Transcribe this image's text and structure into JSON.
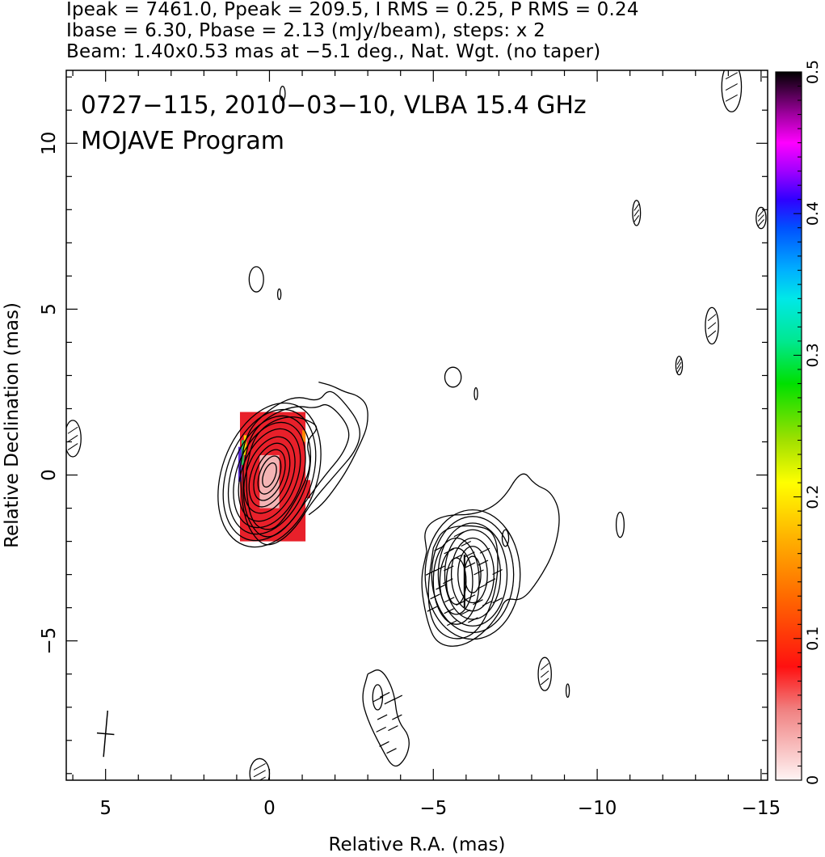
{
  "header": {
    "line1": "Ipeak = 7461.0, Ppeak = 209.5, I RMS = 0.25, P RMS = 0.24",
    "line2": "Ibase = 6.30, Pbase = 2.13 (mJy/beam), steps: x 2",
    "line3": "Beam: 1.40x0.53 mas at −5.1 deg., Nat. Wgt. (no taper)"
  },
  "annotations": {
    "source": "0727−115, 2010−03−10, VLBA 15.4 GHz",
    "program": "MOJAVE Program"
  },
  "chart_data": {
    "type": "contour",
    "xlabel": "Relative R.A. (mas)",
    "ylabel": "Relative Declination (mas)",
    "xlim": [
      6.2,
      -15.2
    ],
    "ylim": [
      -9.2,
      12.2
    ],
    "xticks": [
      {
        "value": 5,
        "label": "5"
      },
      {
        "value": 0,
        "label": "0"
      },
      {
        "value": -5,
        "label": "−5"
      },
      {
        "value": -10,
        "label": "−10"
      },
      {
        "value": -15,
        "label": "−15"
      }
    ],
    "yticks": [
      {
        "value": 10,
        "label": "10"
      },
      {
        "value": 5,
        "label": "5"
      },
      {
        "value": 0,
        "label": "0"
      },
      {
        "value": -5,
        "label": "−5"
      }
    ],
    "beam": {
      "major": 1.4,
      "minor": 0.53,
      "pa_deg": -5.1,
      "center": [
        5.0,
        -7.8
      ]
    },
    "colorbar": {
      "range": [
        0,
        0.5
      ],
      "ticks": [
        {
          "value": 0,
          "label": "0"
        },
        {
          "value": 0.1,
          "label": "0.1"
        },
        {
          "value": 0.2,
          "label": "0.2"
        },
        {
          "value": 0.3,
          "label": "0.3"
        },
        {
          "value": 0.4,
          "label": "0.4"
        },
        {
          "value": 0.5,
          "label": "0.5"
        }
      ]
    },
    "contour_groups": [
      {
        "name": "core",
        "center": [
          0.0,
          0.0
        ],
        "pa_deg": 20,
        "levels": [
          [
            0.85,
            1.45
          ],
          [
            1.0,
            1.65
          ],
          [
            1.15,
            1.85
          ],
          [
            1.3,
            2.05
          ],
          [
            1.45,
            2.25
          ],
          [
            0.7,
            1.2
          ],
          [
            0.55,
            1.0
          ],
          [
            0.42,
            0.8
          ],
          [
            0.3,
            0.6
          ],
          [
            0.18,
            0.38
          ]
        ]
      },
      {
        "name": "jet-knot",
        "center": [
          -6.2,
          -3.0
        ],
        "pa_deg": 0,
        "levels": [
          [
            0.25,
            0.55
          ],
          [
            0.45,
            0.85
          ],
          [
            0.65,
            1.1
          ],
          [
            0.85,
            1.35
          ],
          [
            1.05,
            1.55
          ],
          [
            1.25,
            1.75
          ],
          [
            1.45,
            1.95
          ]
        ]
      },
      {
        "name": "jet-knot-west",
        "center": [
          -5.7,
          -3.2
        ],
        "pa_deg": 0,
        "levels": [
          [
            0.3,
            0.7
          ],
          [
            0.5,
            1.0
          ],
          [
            0.7,
            1.3
          ]
        ]
      }
    ],
    "contour_paths": [
      {
        "name": "core-outer-1",
        "points": [
          [
            0.9,
            0.2
          ],
          [
            0.7,
            1.3
          ],
          [
            0.0,
            2.0
          ],
          [
            -0.8,
            2.4
          ],
          [
            -1.5,
            2.2
          ],
          [
            -1.8,
            2.6
          ],
          [
            -2.2,
            2.3
          ],
          [
            -2.8,
            1.5
          ],
          [
            -2.7,
            0.8
          ],
          [
            -2.0,
            0.0
          ],
          [
            -1.3,
            -0.8
          ],
          [
            -0.8,
            -1.6
          ],
          [
            -0.2,
            -2.1
          ],
          [
            0.3,
            -2.1
          ],
          [
            0.8,
            -1.3
          ],
          [
            0.9,
            0.2
          ]
        ]
      },
      {
        "name": "core-outer-2",
        "points": [
          [
            0.8,
            0.2
          ],
          [
            0.6,
            1.2
          ],
          [
            0.0,
            1.8
          ],
          [
            -0.8,
            2.1
          ],
          [
            -1.4,
            2.0
          ],
          [
            -1.8,
            2.2
          ],
          [
            -2.5,
            1.4
          ],
          [
            -2.3,
            0.7
          ],
          [
            -1.7,
            0.0
          ],
          [
            -1.1,
            -0.8
          ],
          [
            -0.6,
            -1.5
          ],
          [
            -0.1,
            -1.9
          ],
          [
            0.4,
            -1.8
          ],
          [
            0.8,
            -1.0
          ],
          [
            0.8,
            0.2
          ]
        ]
      },
      {
        "name": "core-outer-3",
        "points": [
          [
            0.7,
            0.2
          ],
          [
            0.5,
            1.1
          ],
          [
            0.0,
            1.6
          ],
          [
            -0.7,
            1.8
          ],
          [
            -1.3,
            1.6
          ],
          [
            -1.5,
            1.4
          ],
          [
            -1.1,
            1.0
          ],
          [
            -1.3,
            0.3
          ],
          [
            -0.9,
            -0.6
          ],
          [
            -0.4,
            -1.4
          ],
          [
            0.0,
            -1.7
          ],
          [
            0.5,
            -1.5
          ],
          [
            0.7,
            -0.7
          ],
          [
            0.7,
            0.2
          ]
        ]
      },
      {
        "name": "core-extension",
        "points": [
          [
            -1.5,
            2.8
          ],
          [
            -1.9,
            2.7
          ],
          [
            -2.3,
            2.5
          ],
          [
            -2.7,
            2.4
          ],
          [
            -3.0,
            2.1
          ],
          [
            -3.0,
            1.5
          ],
          [
            -2.8,
            1.0
          ],
          [
            -2.4,
            0.2
          ],
          [
            -2.0,
            -0.4
          ],
          [
            -1.6,
            -0.9
          ],
          [
            -1.2,
            -1.2
          ]
        ]
      },
      {
        "name": "jet-envelope",
        "points": [
          [
            -4.8,
            -2.3
          ],
          [
            -4.7,
            -1.6
          ],
          [
            -5.3,
            -1.2
          ],
          [
            -6.3,
            -1.2
          ],
          [
            -7.1,
            -0.8
          ],
          [
            -7.7,
            0.2
          ],
          [
            -8.1,
            -0.3
          ],
          [
            -8.6,
            -0.5
          ],
          [
            -8.9,
            -1.2
          ],
          [
            -8.7,
            -2.3
          ],
          [
            -8.2,
            -3.2
          ],
          [
            -7.7,
            -3.8
          ],
          [
            -7.2,
            -3.7
          ],
          [
            -7.0,
            -4.2
          ],
          [
            -6.5,
            -4.8
          ],
          [
            -5.8,
            -5.2
          ],
          [
            -5.1,
            -5.1
          ],
          [
            -4.8,
            -4.4
          ],
          [
            -4.6,
            -3.2
          ],
          [
            -4.8,
            -2.3
          ]
        ]
      },
      {
        "name": "jet-envelope-inner",
        "points": [
          [
            -5.0,
            -2.2
          ],
          [
            -5.3,
            -1.6
          ],
          [
            -6.2,
            -1.5
          ],
          [
            -6.9,
            -1.7
          ],
          [
            -7.0,
            -2.8
          ],
          [
            -6.8,
            -3.9
          ],
          [
            -6.3,
            -4.8
          ],
          [
            -5.6,
            -5.0
          ],
          [
            -5.0,
            -4.6
          ],
          [
            -4.8,
            -3.6
          ],
          [
            -5.0,
            -2.2
          ]
        ]
      },
      {
        "name": "south-blob",
        "points": [
          [
            -3.0,
            -6.0
          ],
          [
            -3.4,
            -5.8
          ],
          [
            -3.8,
            -6.5
          ],
          [
            -3.9,
            -7.4
          ],
          [
            -4.3,
            -7.9
          ],
          [
            -4.2,
            -8.5
          ],
          [
            -3.8,
            -8.9
          ],
          [
            -3.4,
            -8.2
          ],
          [
            -3.0,
            -7.4
          ],
          [
            -2.8,
            -6.7
          ],
          [
            -3.0,
            -6.0
          ]
        ]
      }
    ],
    "small_contours": [
      {
        "center": [
          0.4,
          5.9
        ],
        "rx": 0.22,
        "ry": 0.38,
        "hatched": false
      },
      {
        "center": [
          -0.3,
          5.45
        ],
        "rx": 0.05,
        "ry": 0.16,
        "hatched": false
      },
      {
        "center": [
          -0.4,
          11.5
        ],
        "rx": 0.08,
        "ry": 0.22,
        "hatched": false
      },
      {
        "center": [
          -5.6,
          2.95
        ],
        "rx": 0.25,
        "ry": 0.3,
        "hatched": false
      },
      {
        "center": [
          -6.3,
          2.45
        ],
        "rx": 0.05,
        "ry": 0.18,
        "hatched": false
      },
      {
        "center": [
          -11.2,
          7.9
        ],
        "rx": 0.12,
        "ry": 0.38,
        "hatched": true
      },
      {
        "center": [
          -14.1,
          11.7
        ],
        "rx": 0.3,
        "ry": 0.75,
        "hatched": true
      },
      {
        "center": [
          -15.0,
          7.75
        ],
        "rx": 0.15,
        "ry": 0.32,
        "hatched": true
      },
      {
        "center": [
          -13.5,
          4.5
        ],
        "rx": 0.2,
        "ry": 0.55,
        "hatched": true
      },
      {
        "center": [
          -12.5,
          3.3
        ],
        "rx": 0.1,
        "ry": 0.28,
        "hatched": true
      },
      {
        "center": [
          6.0,
          1.1
        ],
        "rx": 0.25,
        "ry": 0.55,
        "hatched": true
      },
      {
        "center": [
          -10.7,
          -1.5
        ],
        "rx": 0.12,
        "ry": 0.38,
        "hatched": false
      },
      {
        "center": [
          -8.4,
          -6.0
        ],
        "rx": 0.2,
        "ry": 0.5,
        "hatched": true
      },
      {
        "center": [
          -9.1,
          -6.5
        ],
        "rx": 0.05,
        "ry": 0.2,
        "hatched": false
      },
      {
        "center": [
          -3.3,
          -6.7
        ],
        "rx": 0.15,
        "ry": 0.38,
        "hatched": false
      },
      {
        "center": [
          -7.2,
          -1.9
        ],
        "rx": 0.1,
        "ry": 0.25,
        "hatched": false
      },
      {
        "center": [
          0.3,
          -9.0
        ],
        "rx": 0.3,
        "ry": 0.45,
        "hatched": true
      }
    ],
    "pol_patches": [
      {
        "x": [
          0.9,
          -1.1
        ],
        "y": [
          -2.0,
          1.9
        ],
        "color": "#e8202a",
        "note": "core red fill"
      },
      {
        "x": [
          0.3,
          -0.3
        ],
        "y": [
          -1.0,
          0.6
        ],
        "color": "#f4b4b4",
        "note": "pale centre"
      },
      {
        "x": [
          -1.1,
          -1.25
        ],
        "y": [
          -0.7,
          -0.15
        ],
        "color": "#e8202a"
      },
      {
        "x": [
          -1.0,
          -1.1
        ],
        "y": [
          1.0,
          1.35
        ],
        "color": "#ff8a00"
      },
      {
        "x": [
          0.95,
          0.85
        ],
        "y": [
          -0.2,
          0.85
        ],
        "color": "#5a2bd8"
      },
      {
        "x": [
          0.85,
          0.78
        ],
        "y": [
          0.3,
          1.05
        ],
        "color": "#2fc05a"
      },
      {
        "x": [
          0.78,
          0.7
        ],
        "y": [
          0.6,
          1.2
        ],
        "color": "#ffd200"
      }
    ]
  }
}
